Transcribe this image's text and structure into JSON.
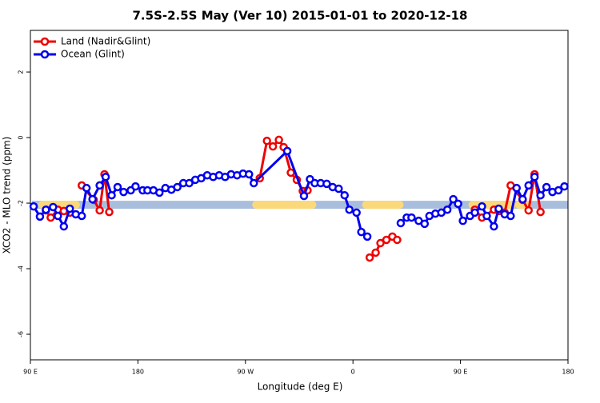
{
  "chart_data": {
    "type": "line",
    "title": "7.5S-2.5S May (Ver 10)   2015-01-01 to 2020-12-18",
    "xlabel": "Longitude (deg E)",
    "ylabel": "XCO2 - MLO trend (ppm)",
    "xlim": [
      90,
      540
    ],
    "ylim": [
      -6.78,
      3.27
    ],
    "xticks": [
      {
        "value": 90,
        "label": "90 E"
      },
      180,
      {
        "value": 270,
        "label": "90 W"
      },
      {
        "value": 360,
        "label": "0"
      },
      {
        "value": 450,
        "label": "90 E"
      },
      180
    ],
    "yticks": [
      2,
      0,
      -2,
      -4,
      -6
    ],
    "legend": "upper left",
    "surface_band": {
      "y": -2.05,
      "ocean_color": "#a9bedd",
      "land_color": "#fbd97a",
      "land": [
        [
          100,
          128
        ],
        [
          279,
          326
        ],
        [
          371,
          399
        ],
        [
          460,
          493
        ],
        [
          499,
          506
        ]
      ]
    },
    "series": [
      {
        "name": "Land (Nadir&Glint)",
        "color": "#ee0000",
        "x": [
          103,
          107,
          113,
          118,
          123,
          128,
          133,
          143,
          148,
          152,
          156,
          160,
          282,
          288,
          293,
          298,
          302,
          308,
          313,
          318,
          322,
          330,
          374,
          379,
          383,
          388,
          393,
          397,
          420,
          462,
          468,
          478,
          482,
          487,
          492,
          502,
          507,
          512,
          517
        ],
        "values": [
          -2.22,
          -2.44,
          -2.2,
          -2.24,
          -2.29,
          null,
          -1.46,
          -1.9,
          -2.22,
          -1.12,
          -2.27,
          null,
          -1.24,
          -0.1,
          -0.27,
          -0.07,
          -0.29,
          -1.07,
          -1.29,
          -1.63,
          -1.61,
          null,
          -3.66,
          -3.51,
          -3.22,
          -3.12,
          -3.02,
          -3.12,
          null,
          -2.2,
          -2.44,
          -2.2,
          -2.24,
          -2.29,
          -1.46,
          -1.9,
          -2.22,
          -1.12,
          -2.27
        ]
      },
      {
        "name": "Ocean (Glint)",
        "color": "#0000ee",
        "x": [
          92.7,
          98,
          103,
          109,
          113,
          118,
          123,
          128,
          133,
          137,
          142,
          148,
          153,
          158,
          163,
          168,
          174,
          178,
          184,
          188,
          193,
          198,
          203,
          208,
          213,
          218,
          223,
          228,
          233,
          238,
          243,
          248,
          253,
          258,
          263,
          268,
          273,
          277,
          305,
          319,
          324,
          328,
          333,
          338,
          343,
          348,
          353,
          357,
          363,
          367,
          372,
          385,
          400,
          405,
          409,
          415,
          420,
          424,
          429,
          434,
          439,
          444,
          448,
          452,
          458,
          462,
          468,
          472,
          478,
          482,
          487,
          492,
          497,
          502,
          507,
          512,
          517,
          522,
          527,
          532,
          537
        ],
        "values": [
          -2.1,
          -2.41,
          -2.2,
          -2.12,
          -2.39,
          -2.71,
          -2.17,
          -2.34,
          -2.39,
          -1.54,
          -1.88,
          -1.46,
          -1.2,
          -1.76,
          -1.51,
          -1.66,
          -1.61,
          -1.49,
          -1.61,
          -1.61,
          -1.61,
          -1.68,
          -1.54,
          -1.59,
          -1.51,
          -1.39,
          -1.39,
          -1.29,
          -1.24,
          -1.15,
          -1.2,
          -1.15,
          -1.2,
          -1.12,
          -1.15,
          -1.1,
          -1.12,
          -1.39,
          -0.41,
          -1.78,
          -1.27,
          -1.39,
          -1.39,
          -1.41,
          -1.51,
          -1.56,
          -1.76,
          -2.2,
          -2.29,
          -2.88,
          -3.02,
          null,
          -2.61,
          -2.44,
          -2.44,
          -2.54,
          -2.63,
          -2.39,
          -2.32,
          -2.29,
          -2.2,
          -1.88,
          -2.02,
          -2.54,
          -2.39,
          -2.29,
          -2.1,
          -2.39,
          -2.71,
          -2.17,
          -2.34,
          -2.39,
          -1.54,
          -1.88,
          -1.46,
          -1.2,
          -1.76,
          -1.51,
          -1.66,
          -1.61,
          -1.49
        ]
      }
    ]
  }
}
